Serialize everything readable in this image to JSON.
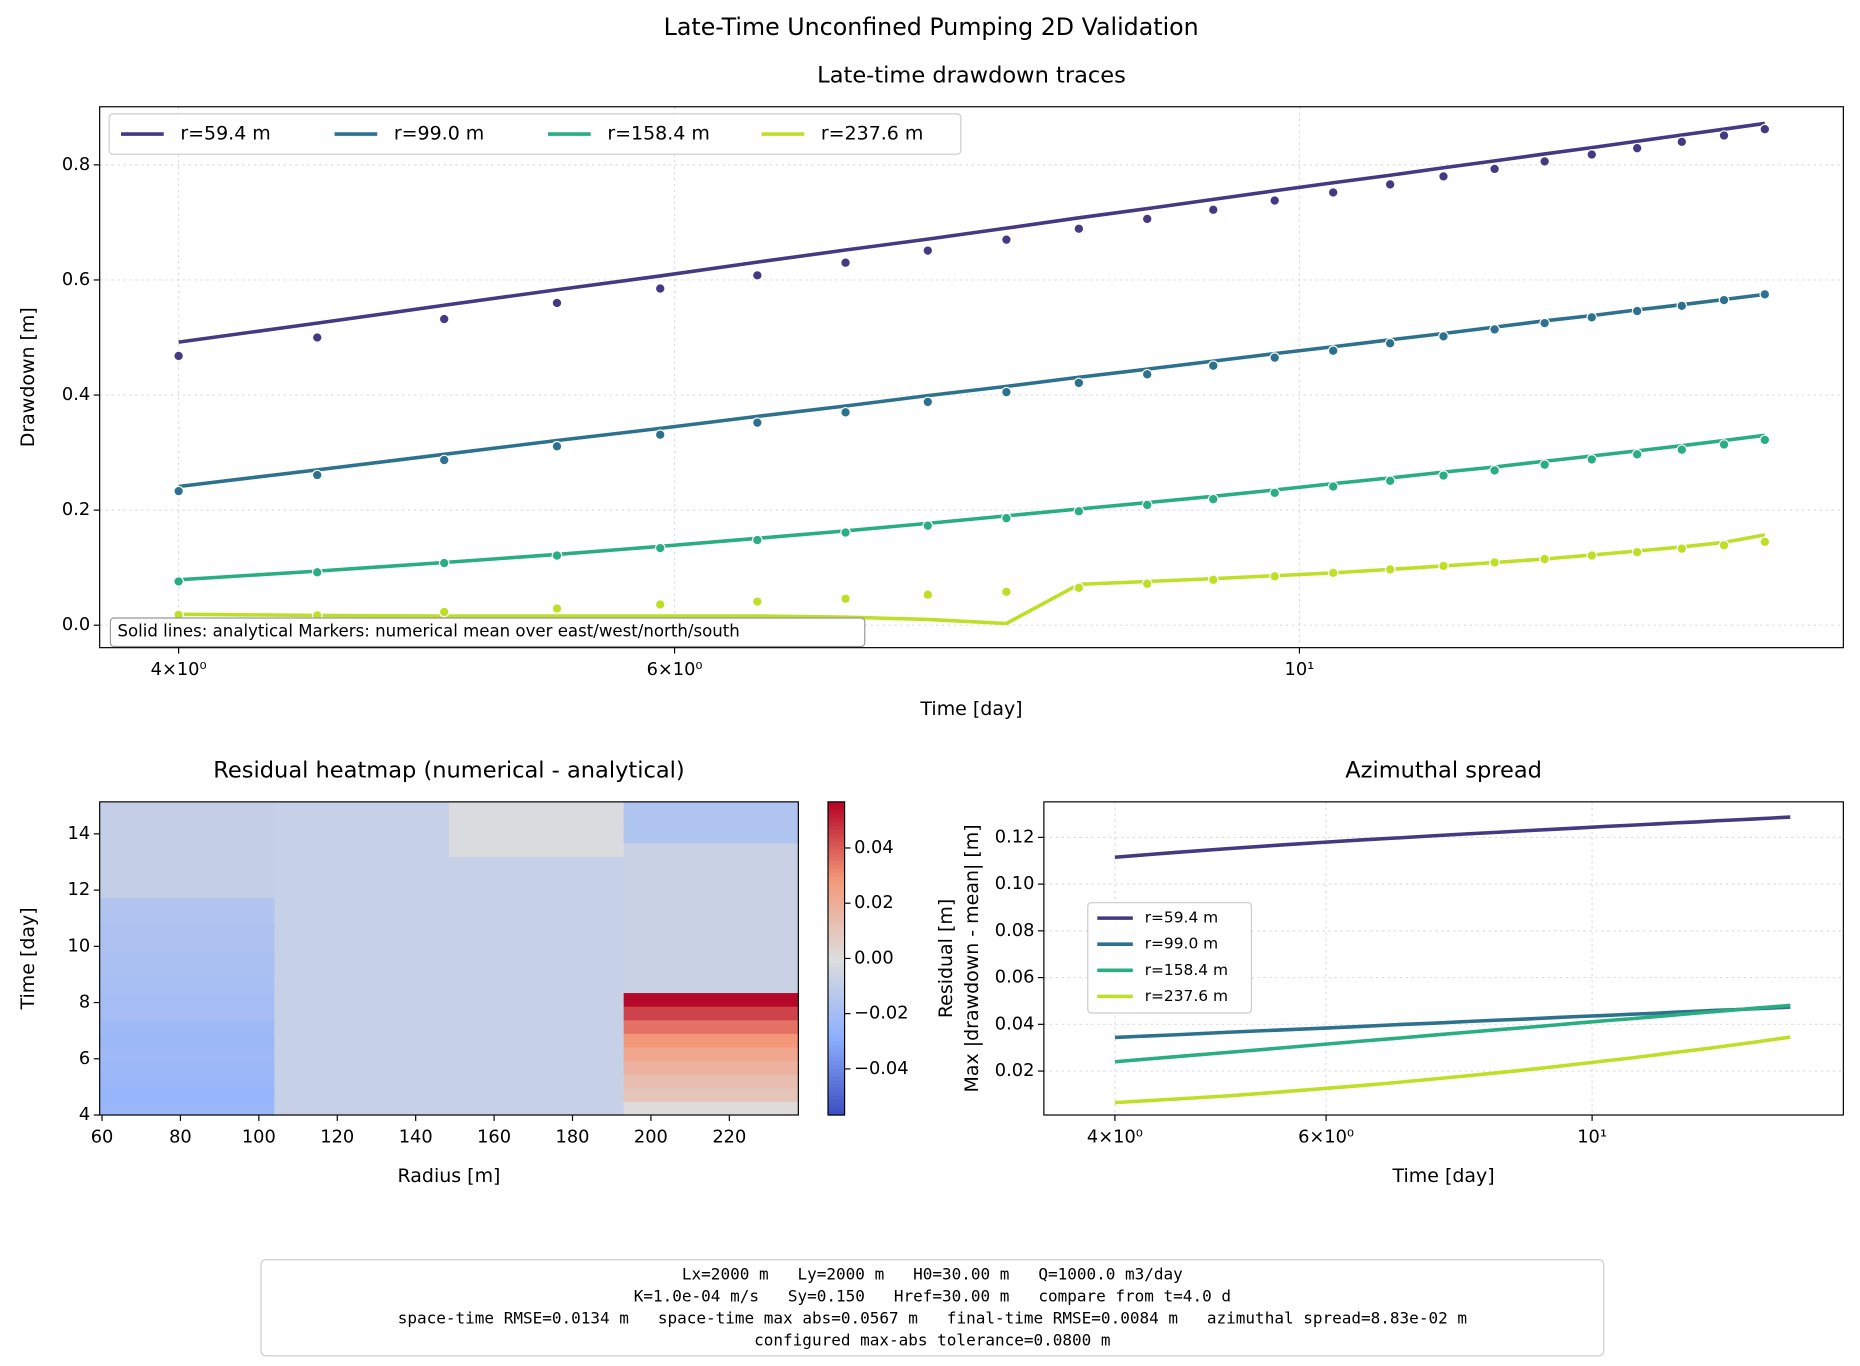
{
  "title": "Late-Time Unconfined Pumping 2D Validation",
  "chart_data": [
    {
      "type": "line",
      "title": "Late-time drawdown traces",
      "xlabel": "Time [day]",
      "ylabel": "Drawdown [m]",
      "xscale": "log",
      "grid": true,
      "legend": "upper left",
      "annotation": "Solid lines: analytical   Markers: numerical mean over east/west/north/south",
      "x": [
        4.0,
        4.48,
        4.97,
        5.45,
        5.93,
        6.42,
        6.9,
        7.38,
        7.87,
        8.35,
        8.83,
        9.32,
        9.8,
        10.28,
        10.77,
        11.25,
        11.73,
        12.22,
        12.7,
        13.18,
        13.67,
        14.15,
        14.63
      ],
      "xlim": [
        3.75,
        15.6
      ],
      "xticks": [
        {
          "value": 4,
          "label": "4×10⁰"
        },
        {
          "value": 6,
          "label": "6×10⁰"
        },
        {
          "value": 10,
          "label": "10¹"
        }
      ],
      "ylim": [
        -0.039,
        0.901
      ],
      "yticks": [
        {
          "value": 0,
          "label": "0.0"
        },
        0.2,
        0.4,
        0.6,
        0.8
      ],
      "series": [
        {
          "name": "r=59.4 m",
          "color": "#443983",
          "values": [
            0.492,
            0.525,
            0.556,
            0.583,
            0.607,
            0.631,
            0.652,
            0.671,
            0.69,
            0.708,
            0.724,
            0.74,
            0.755,
            0.769,
            0.782,
            0.795,
            0.807,
            0.819,
            0.83,
            0.841,
            0.852,
            0.862,
            0.872
          ],
          "marker_values": [
            0.468,
            0.5,
            0.532,
            0.56,
            0.585,
            0.608,
            0.63,
            0.651,
            0.67,
            0.689,
            0.706,
            0.722,
            0.738,
            0.752,
            0.766,
            0.78,
            0.793,
            0.806,
            0.818,
            0.829,
            0.84,
            0.851,
            0.862
          ]
        },
        {
          "name": "r=99.0 m",
          "color": "#2c728e",
          "values": [
            0.241,
            0.27,
            0.297,
            0.321,
            0.342,
            0.363,
            0.381,
            0.399,
            0.415,
            0.431,
            0.445,
            0.459,
            0.472,
            0.484,
            0.496,
            0.507,
            0.518,
            0.529,
            0.538,
            0.548,
            0.557,
            0.566,
            0.575
          ],
          "marker_values": [
            0.233,
            0.261,
            0.287,
            0.311,
            0.331,
            0.352,
            0.37,
            0.388,
            0.405,
            0.421,
            0.436,
            0.451,
            0.465,
            0.477,
            0.49,
            0.502,
            0.514,
            0.525,
            0.535,
            0.546,
            0.555,
            0.565,
            0.575
          ]
        },
        {
          "name": "r=158.4 m",
          "color": "#28ae80",
          "values": [
            0.079,
            0.094,
            0.109,
            0.123,
            0.137,
            0.151,
            0.164,
            0.177,
            0.19,
            0.202,
            0.213,
            0.224,
            0.235,
            0.246,
            0.256,
            0.266,
            0.275,
            0.285,
            0.294,
            0.303,
            0.312,
            0.321,
            0.33
          ],
          "marker_values": [
            0.076,
            0.092,
            0.108,
            0.121,
            0.134,
            0.148,
            0.161,
            0.173,
            0.186,
            0.198,
            0.209,
            0.219,
            0.23,
            0.241,
            0.251,
            0.26,
            0.269,
            0.279,
            0.288,
            0.297,
            0.305,
            0.314,
            0.322
          ]
        },
        {
          "name": "r=237.6 m",
          "color": "#bddf26",
          "values": [
            0.019,
            0.017,
            0.016,
            0.016,
            0.016,
            0.016,
            0.014,
            0.01,
            0.003,
            0.071,
            0.076,
            0.081,
            0.086,
            0.091,
            0.097,
            0.103,
            0.109,
            0.115,
            0.122,
            0.129,
            0.136,
            0.144,
            0.157
          ],
          "marker_values": [
            0.018,
            0.017,
            0.023,
            0.029,
            0.036,
            0.041,
            0.046,
            0.053,
            0.058,
            0.065,
            0.072,
            0.079,
            0.085,
            0.091,
            0.097,
            0.103,
            0.109,
            0.115,
            0.121,
            0.127,
            0.133,
            0.139,
            0.145
          ]
        }
      ]
    },
    {
      "type": "heatmap",
      "title": "Residual heatmap (numerical - analytical)",
      "xlabel": "Radius [m]",
      "ylabel": "Time [day]",
      "colormap": "coolwarm",
      "x_edges": [
        59.4,
        103.95,
        148.5,
        193.05,
        237.6
      ],
      "y_edges": [
        4.0,
        4.484,
        4.969,
        5.453,
        5.937,
        6.422,
        6.906,
        7.39,
        7.874,
        8.359,
        8.843,
        9.327,
        9.812,
        10.296,
        10.78,
        11.265,
        11.749,
        12.233,
        12.717,
        13.202,
        13.686,
        14.17,
        14.655,
        15.139
      ],
      "xlim": [
        59.4,
        237.6
      ],
      "ylim": [
        4.0,
        15.139
      ],
      "xticks": [
        60,
        80,
        100,
        120,
        140,
        160,
        180,
        200,
        220
      ],
      "yticks": [
        4,
        6,
        8,
        10,
        12,
        14
      ],
      "z": [
        [
          -0.024,
          -0.008,
          -0.008,
          0.001
        ],
        [
          -0.025,
          -0.008,
          -0.008,
          0.01
        ],
        [
          -0.024,
          -0.008,
          -0.008,
          0.013
        ],
        [
          -0.023,
          -0.008,
          -0.008,
          0.018
        ],
        [
          -0.022,
          -0.008,
          -0.008,
          0.023
        ],
        [
          -0.023,
          -0.008,
          -0.008,
          0.029
        ],
        [
          -0.022,
          -0.008,
          -0.008,
          0.036
        ],
        [
          -0.02,
          -0.008,
          -0.008,
          0.045
        ],
        [
          -0.02,
          -0.008,
          -0.008,
          0.056
        ],
        [
          -0.019,
          -0.008,
          -0.008,
          -0.007
        ],
        [
          -0.018,
          -0.008,
          -0.008,
          -0.007
        ],
        [
          -0.018,
          -0.008,
          -0.008,
          -0.007
        ],
        [
          -0.017,
          -0.008,
          -0.008,
          -0.007
        ],
        [
          -0.017,
          -0.008,
          -0.008,
          -0.007
        ],
        [
          -0.016,
          -0.008,
          -0.008,
          -0.007
        ],
        [
          -0.015,
          -0.008,
          -0.008,
          -0.007
        ],
        [
          -0.009,
          -0.008,
          -0.008,
          -0.007
        ],
        [
          -0.009,
          -0.008,
          -0.008,
          -0.007
        ],
        [
          -0.009,
          -0.008,
          -0.008,
          -0.007
        ],
        [
          -0.009,
          -0.008,
          -0.001,
          -0.007
        ],
        [
          -0.009,
          -0.008,
          -0.001,
          -0.016
        ],
        [
          -0.009,
          -0.008,
          -0.001,
          -0.016
        ],
        [
          -0.009,
          -0.008,
          -0.001,
          -0.016
        ]
      ],
      "colorbar": {
        "label": "Residual [m]",
        "clim": [
          -0.0567,
          0.0567
        ],
        "ticks": [
          {
            "value": -0.04,
            "label": "−0.04"
          },
          {
            "value": -0.02,
            "label": "−0.02"
          },
          {
            "value": 0,
            "label": "0.00"
          },
          0.02,
          0.04
        ]
      }
    },
    {
      "type": "line",
      "title": "Azimuthal spread",
      "xlabel": "Time [day]",
      "ylabel": "Max |drawdown - mean| [m]",
      "xscale": "log",
      "grid": true,
      "legend": "center left",
      "x": [
        4.0,
        4.48,
        4.97,
        5.45,
        5.93,
        6.42,
        6.9,
        7.38,
        7.87,
        8.35,
        8.83,
        9.32,
        9.8,
        10.28,
        10.77,
        11.25,
        11.73,
        12.22,
        12.7,
        13.18,
        13.67,
        14.15,
        14.63
      ],
      "xlim": [
        3.49,
        16.2
      ],
      "xticks": [
        {
          "value": 4,
          "label": "4×10⁰"
        },
        {
          "value": 6,
          "label": "6×10⁰"
        },
        {
          "value": 10,
          "label": "10¹"
        }
      ],
      "ylim": [
        0.0012,
        0.1352
      ],
      "yticks": [
        0.02,
        0.04,
        0.06,
        0.08,
        {
          "value": 0.1,
          "label": "0.10"
        },
        0.12
      ],
      "series": [
        {
          "name": "r=59.4 m",
          "color": "#443983",
          "values": [
            0.1115,
            0.1135,
            0.1152,
            0.1166,
            0.1178,
            0.1189,
            0.1198,
            0.1207,
            0.1215,
            0.1222,
            0.1229,
            0.1235,
            0.1241,
            0.1247,
            0.1252,
            0.1257,
            0.1262,
            0.1266,
            0.1271,
            0.1275,
            0.1279,
            0.1283,
            0.1287
          ]
        },
        {
          "name": "r=99.0 m",
          "color": "#2c728e",
          "values": [
            0.0344,
            0.0355,
            0.0366,
            0.0375,
            0.0383,
            0.0391,
            0.0399,
            0.0405,
            0.0412,
            0.0418,
            0.0423,
            0.0429,
            0.0434,
            0.0438,
            0.0443,
            0.0447,
            0.0452,
            0.0456,
            0.046,
            0.0463,
            0.0467,
            0.047,
            0.0474
          ]
        },
        {
          "name": "r=158.4 m",
          "color": "#28ae80",
          "values": [
            0.024,
            0.0261,
            0.028,
            0.0297,
            0.0313,
            0.0328,
            0.0341,
            0.0354,
            0.0366,
            0.0377,
            0.0387,
            0.0397,
            0.0407,
            0.0416,
            0.0424,
            0.0432,
            0.044,
            0.0448,
            0.0455,
            0.0462,
            0.0469,
            0.0475,
            0.0481
          ]
        },
        {
          "name": "r=237.6 m",
          "color": "#bddf26",
          "values": [
            0.0065,
            0.008,
            0.0094,
            0.0109,
            0.0124,
            0.0138,
            0.0152,
            0.0166,
            0.018,
            0.0193,
            0.0206,
            0.0219,
            0.0232,
            0.0244,
            0.0256,
            0.0268,
            0.028,
            0.0291,
            0.0302,
            0.0313,
            0.0324,
            0.0335,
            0.0345
          ]
        }
      ]
    }
  ],
  "info_box": {
    "lines": [
      "Lx=2000 m   Ly=2000 m   H0=30.00 m   Q=1000.0 m3/day",
      "K=1.0e-04 m/s   Sy=0.150   Href=30.00 m   compare from t=4.0 d",
      "space-time RMSE=0.0134 m   space-time max abs=0.0567 m   final-time RMSE=0.0084 m   azimuthal spread=8.83e-02 m",
      "configured max-abs tolerance=0.0800 m"
    ]
  }
}
